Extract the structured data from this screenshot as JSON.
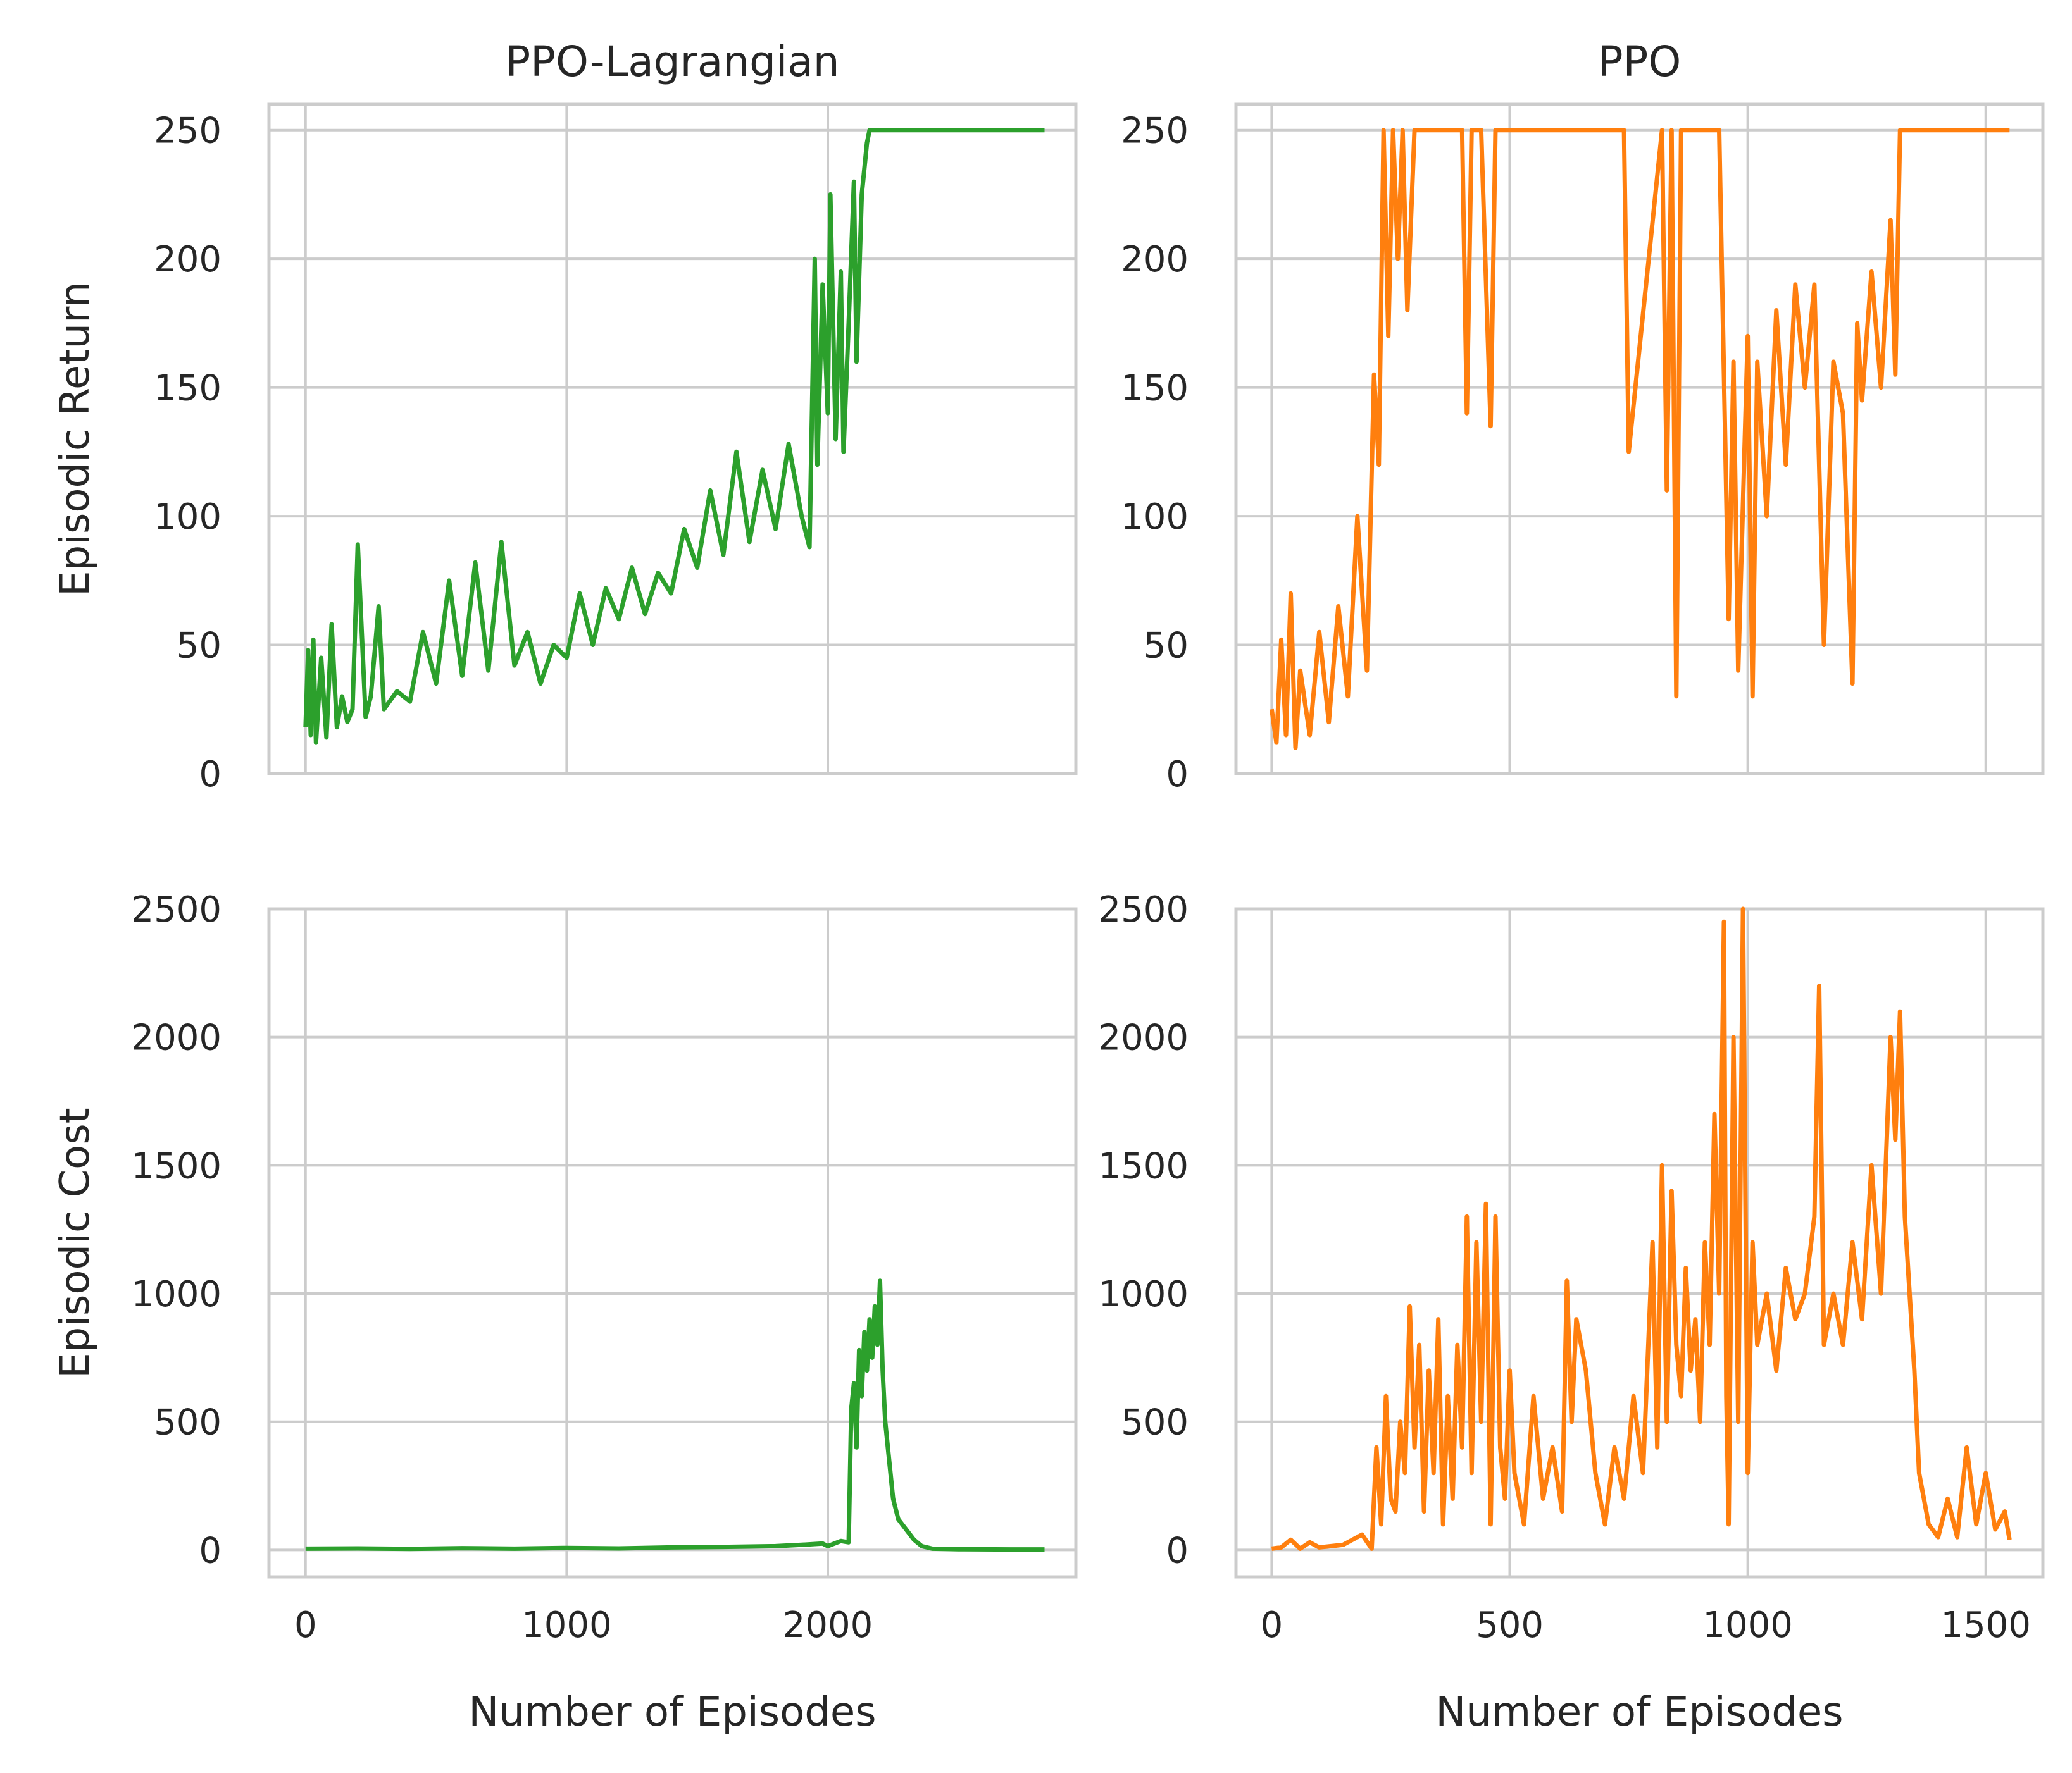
{
  "figure": {
    "row_labels": [
      "Episodic Return",
      "Episodic Cost"
    ],
    "col_titles": [
      "PPO-Lagrangian",
      "PPO"
    ],
    "xlabel": "Number of Episodes"
  },
  "chart_data": [
    {
      "type": "line",
      "title": "PPO-Lagrangian",
      "xlabel": "",
      "ylabel": "Episodic Return",
      "xlim": [
        -140,
        2950
      ],
      "ylim": [
        0,
        260
      ],
      "xticks": [
        0,
        1000,
        2000
      ],
      "yticks": [
        0,
        50,
        100,
        150,
        200,
        250
      ],
      "xtick_labels": [],
      "ytick_labels": [
        "0",
        "50",
        "100",
        "150",
        "200",
        "250"
      ],
      "grid": true,
      "color": "#2ca02c",
      "series": [
        {
          "x": [
            0,
            10,
            20,
            30,
            40,
            60,
            80,
            100,
            120,
            140,
            160,
            180,
            200,
            230,
            250,
            280,
            300,
            350,
            400,
            450,
            500,
            550,
            600,
            650,
            700,
            750,
            800,
            850,
            900,
            950,
            1000,
            1050,
            1100,
            1150,
            1200,
            1250,
            1300,
            1350,
            1400,
            1450,
            1500,
            1550,
            1600,
            1650,
            1700,
            1750,
            1800,
            1850,
            1900,
            1930,
            1950,
            1960,
            1980,
            2000,
            2010,
            2030,
            2050,
            2060,
            2080,
            2100,
            2110,
            2130,
            2150,
            2160,
            2180,
            2200,
            2300,
            2500,
            2700,
            2830
          ],
          "y": [
            18,
            48,
            15,
            52,
            12,
            45,
            14,
            58,
            18,
            30,
            20,
            25,
            89,
            22,
            30,
            65,
            25,
            32,
            28,
            55,
            35,
            75,
            38,
            82,
            40,
            90,
            42,
            55,
            35,
            50,
            45,
            70,
            50,
            72,
            60,
            80,
            62,
            78,
            70,
            95,
            80,
            110,
            85,
            125,
            90,
            118,
            95,
            128,
            100,
            88,
            200,
            120,
            190,
            140,
            225,
            130,
            195,
            125,
            175,
            230,
            160,
            225,
            245,
            250,
            250,
            250,
            250,
            250,
            250,
            250
          ]
        }
      ]
    },
    {
      "type": "line",
      "title": "PPO",
      "xlabel": "",
      "ylabel": "",
      "xlim": [
        -75,
        1620
      ],
      "ylim": [
        0,
        260
      ],
      "xticks": [
        0,
        500,
        1000,
        1500
      ],
      "yticks": [
        0,
        50,
        100,
        150,
        200,
        250
      ],
      "xtick_labels": [],
      "ytick_labels": [
        "0",
        "50",
        "100",
        "150",
        "200",
        "250"
      ],
      "grid": true,
      "color": "#ff7f0e",
      "series": [
        {
          "x": [
            0,
            10,
            20,
            30,
            40,
            50,
            60,
            80,
            100,
            120,
            140,
            160,
            180,
            200,
            215,
            225,
            235,
            245,
            255,
            265,
            275,
            285,
            300,
            310,
            330,
            400,
            410,
            420,
            440,
            460,
            470,
            480,
            700,
            740,
            750,
            820,
            830,
            840,
            850,
            860,
            900,
            940,
            950,
            960,
            970,
            980,
            1000,
            1010,
            1020,
            1040,
            1060,
            1080,
            1100,
            1120,
            1140,
            1160,
            1180,
            1200,
            1220,
            1230,
            1240,
            1260,
            1280,
            1300,
            1310,
            1320,
            1330,
            1350,
            1400,
            1450,
            1550
          ],
          "y": [
            25,
            12,
            52,
            15,
            70,
            10,
            40,
            15,
            55,
            20,
            65,
            30,
            100,
            40,
            155,
            120,
            250,
            170,
            250,
            200,
            250,
            180,
            250,
            250,
            250,
            250,
            140,
            250,
            250,
            135,
            250,
            250,
            250,
            250,
            125,
            250,
            110,
            250,
            30,
            250,
            250,
            250,
            155,
            60,
            160,
            40,
            170,
            30,
            160,
            100,
            180,
            120,
            190,
            150,
            190,
            50,
            160,
            140,
            35,
            175,
            145,
            195,
            150,
            215,
            155,
            250,
            250,
            250,
            250,
            250,
            250
          ]
        }
      ]
    },
    {
      "type": "line",
      "title": "",
      "xlabel": "Number of Episodes",
      "ylabel": "Episodic Cost",
      "xlim": [
        -140,
        2950
      ],
      "ylim": [
        -105,
        2500
      ],
      "xticks": [
        0,
        1000,
        2000
      ],
      "yticks": [
        0,
        500,
        1000,
        1500,
        2000,
        2500
      ],
      "xtick_labels": [
        "0",
        "1000",
        "2000"
      ],
      "ytick_labels": [
        "0",
        "500",
        "1000",
        "1500",
        "2000",
        "2500"
      ],
      "grid": true,
      "color": "#2ca02c",
      "series": [
        {
          "x": [
            0,
            200,
            400,
            600,
            800,
            1000,
            1200,
            1400,
            1600,
            1800,
            1900,
            1980,
            2000,
            2050,
            2080,
            2090,
            2100,
            2110,
            2120,
            2130,
            2140,
            2150,
            2160,
            2170,
            2180,
            2190,
            2200,
            2210,
            2220,
            2230,
            2250,
            2270,
            2300,
            2330,
            2360,
            2400,
            2500,
            2700,
            2830
          ],
          "y": [
            5,
            6,
            4,
            7,
            5,
            8,
            6,
            10,
            12,
            15,
            20,
            25,
            15,
            35,
            30,
            550,
            650,
            400,
            780,
            600,
            850,
            700,
            900,
            750,
            950,
            800,
            1050,
            700,
            500,
            400,
            200,
            120,
            80,
            40,
            15,
            5,
            3,
            2,
            2
          ]
        }
      ]
    },
    {
      "type": "line",
      "title": "",
      "xlabel": "Number of Episodes",
      "ylabel": "",
      "xlim": [
        -75,
        1620
      ],
      "ylim": [
        -105,
        2500
      ],
      "xticks": [
        0,
        500,
        1000,
        1500
      ],
      "yticks": [
        0,
        500,
        1000,
        1500,
        2000,
        2500
      ],
      "xtick_labels": [
        "0",
        "500",
        "1000",
        "1500"
      ],
      "ytick_labels": [
        "0",
        "500",
        "1000",
        "1500",
        "2000",
        "2500"
      ],
      "grid": true,
      "color": "#ff7f0e",
      "series": [
        {
          "x": [
            0,
            20,
            40,
            60,
            80,
            100,
            150,
            190,
            210,
            220,
            230,
            240,
            250,
            260,
            270,
            280,
            290,
            300,
            310,
            320,
            330,
            340,
            350,
            360,
            370,
            380,
            390,
            400,
            410,
            420,
            430,
            440,
            450,
            460,
            470,
            480,
            490,
            500,
            510,
            530,
            550,
            570,
            590,
            610,
            620,
            630,
            640,
            660,
            680,
            700,
            720,
            740,
            760,
            780,
            800,
            810,
            820,
            830,
            840,
            850,
            860,
            870,
            880,
            890,
            900,
            910,
            920,
            930,
            940,
            950,
            955,
            960,
            970,
            980,
            990,
            1000,
            1010,
            1020,
            1040,
            1060,
            1080,
            1100,
            1120,
            1140,
            1150,
            1160,
            1180,
            1200,
            1220,
            1240,
            1260,
            1280,
            1300,
            1310,
            1320,
            1330,
            1340,
            1350,
            1360,
            1380,
            1400,
            1420,
            1440,
            1460,
            1480,
            1500,
            1520,
            1540,
            1550
          ],
          "y": [
            5,
            10,
            40,
            5,
            30,
            10,
            20,
            60,
            5,
            400,
            100,
            600,
            200,
            150,
            500,
            300,
            950,
            400,
            800,
            150,
            700,
            300,
            900,
            100,
            600,
            200,
            800,
            400,
            1300,
            300,
            1200,
            500,
            1350,
            100,
            1300,
            400,
            200,
            700,
            300,
            100,
            600,
            200,
            400,
            150,
            1050,
            500,
            900,
            700,
            300,
            100,
            400,
            200,
            600,
            300,
            1200,
            400,
            1500,
            500,
            1400,
            800,
            600,
            1100,
            700,
            900,
            500,
            1200,
            800,
            1700,
            1000,
            2450,
            600,
            100,
            2000,
            500,
            2500,
            300,
            1200,
            800,
            1000,
            700,
            1100,
            900,
            1000,
            1300,
            2200,
            800,
            1000,
            800,
            1200,
            900,
            1500,
            1000,
            2000,
            1600,
            2100,
            1300,
            1000,
            700,
            300,
            100,
            50,
            200,
            50,
            400,
            100,
            300,
            80,
            150,
            40
          ]
        }
      ]
    }
  ]
}
